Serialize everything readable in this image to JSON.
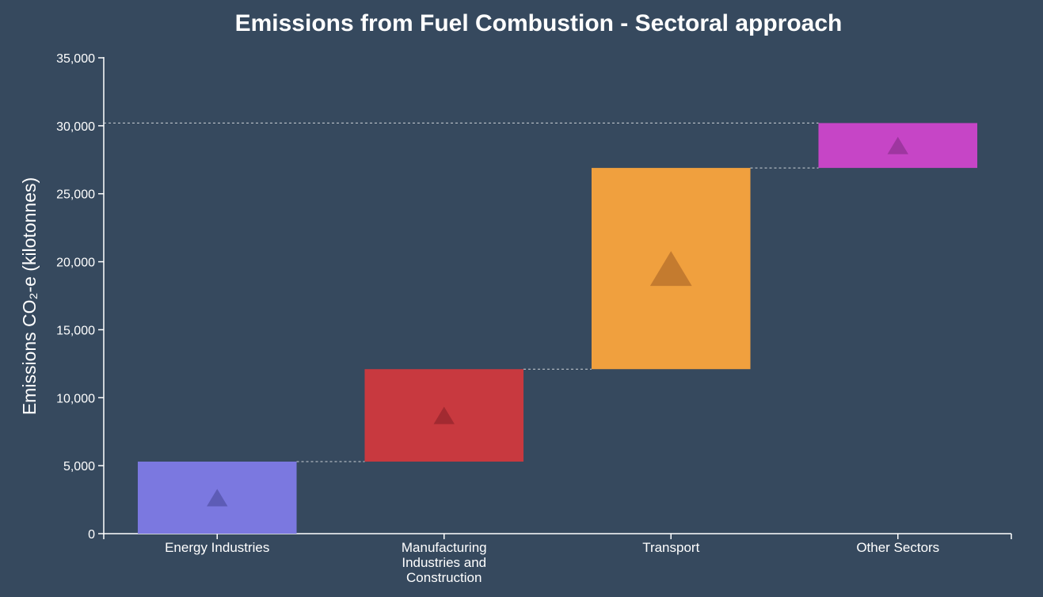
{
  "chart_data": {
    "type": "bar",
    "subtype": "waterfall",
    "title": "Emissions from Fuel Combustion - Sectoral approach",
    "xlabel": "",
    "ylabel": "Emissions CO₂-e (kilotonnes)",
    "ylim": [
      0,
      35000
    ],
    "yticks": [
      0,
      5000,
      10000,
      15000,
      20000,
      25000,
      30000,
      35000
    ],
    "ytick_labels": [
      "0",
      "5,000",
      "10,000",
      "15,000",
      "20,000",
      "25,000",
      "30,000",
      "35,000"
    ],
    "categories": [
      [
        "Energy Industries"
      ],
      [
        "Manufacturing",
        "Industries and",
        "Construction"
      ],
      [
        "Transport"
      ],
      [
        "Other Sectors"
      ]
    ],
    "values": [
      5300,
      6800,
      14800,
      3300
    ],
    "cumulative": [
      5300,
      12100,
      26900,
      30200
    ],
    "direction": [
      "increase",
      "increase",
      "increase",
      "increase"
    ],
    "colors": [
      "#7b78e0",
      "#c8393f",
      "#f0a03e",
      "#c645c6"
    ],
    "marker_colors": [
      "#5d5cb6",
      "#a22a31",
      "#c47b2f",
      "#9e36a0"
    ],
    "marker_icon": "triangle-up-icon",
    "grid": false,
    "legend": "none"
  }
}
